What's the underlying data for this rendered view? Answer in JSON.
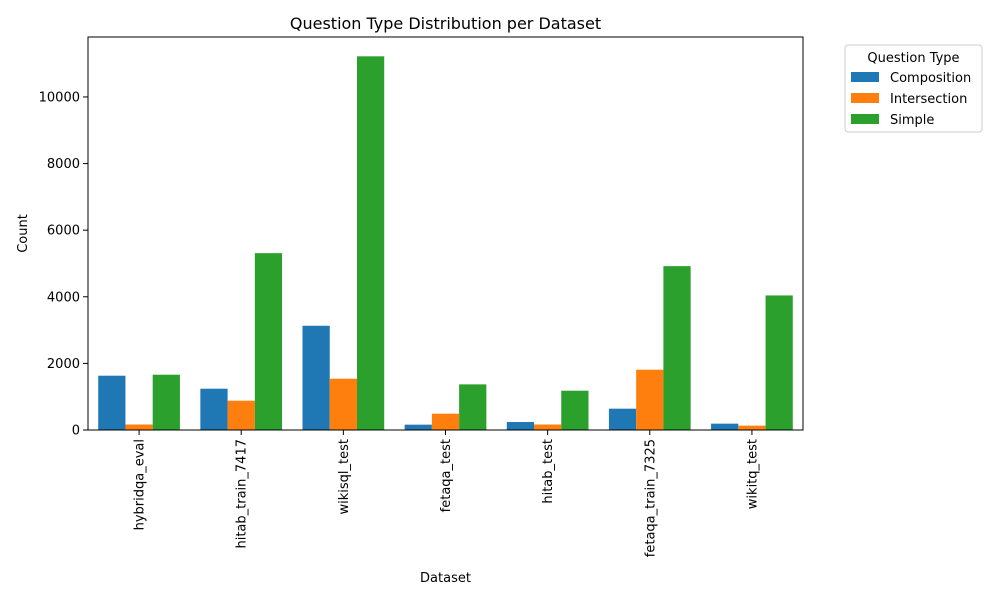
{
  "chart_data": {
    "type": "bar",
    "title": "Question Type Distribution per Dataset",
    "xlabel": "Dataset",
    "ylabel": "Count",
    "categories": [
      "hybridqa_eval",
      "hitab_train_7417",
      "wikisql_test",
      "fetaqa_test",
      "hitab_test",
      "fetaqa_train_7325",
      "wikitq_test"
    ],
    "ylim": [
      0,
      11800
    ],
    "yticks": [
      0,
      2000,
      4000,
      6000,
      8000,
      10000
    ],
    "grid": false,
    "legend": {
      "title": "Question Type",
      "placement": "outside-top-right"
    },
    "series": [
      {
        "name": "Composition",
        "color": "#1f77b4",
        "values": [
          1630,
          1240,
          3130,
          160,
          240,
          640,
          190
        ]
      },
      {
        "name": "Intersection",
        "color": "#ff7f0e",
        "values": [
          165,
          880,
          1540,
          490,
          165,
          1810,
          130
        ]
      },
      {
        "name": "Simple",
        "color": "#2ca02c",
        "values": [
          1660,
          5310,
          11220,
          1370,
          1180,
          4920,
          4040
        ]
      }
    ]
  }
}
